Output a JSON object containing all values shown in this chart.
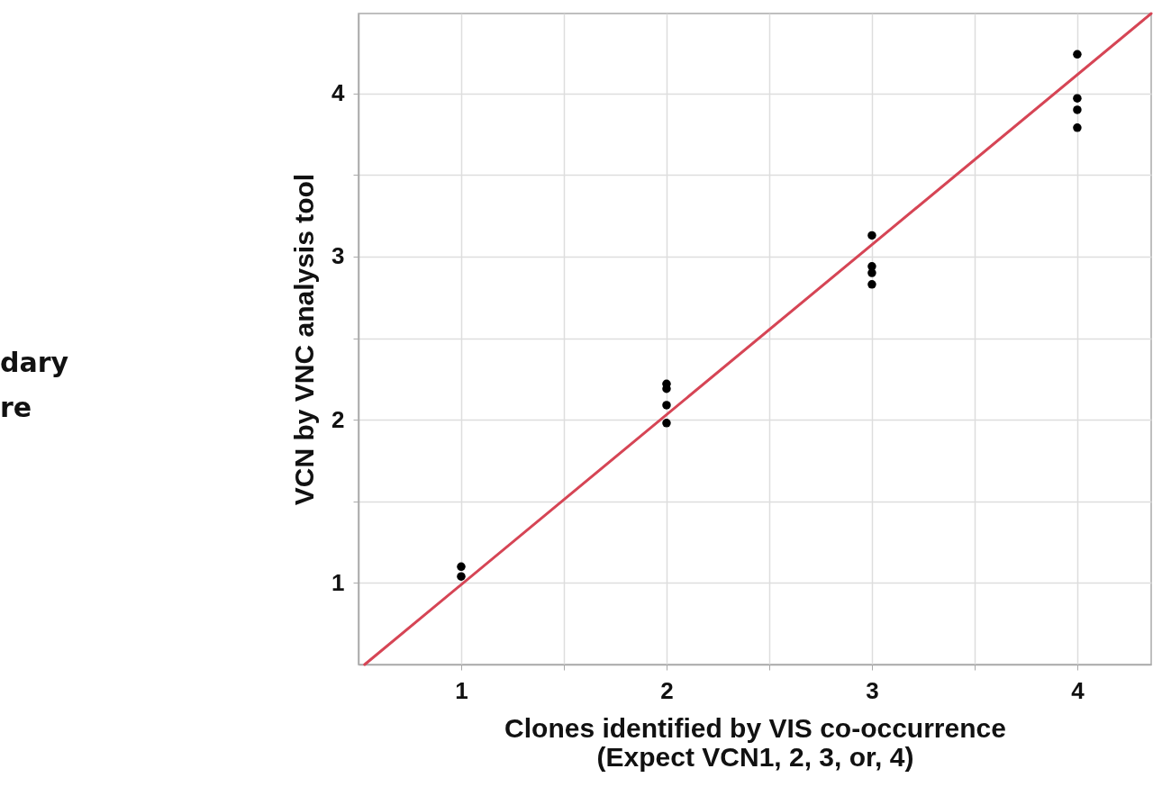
{
  "chart_data": {
    "type": "scatter",
    "xlabel": "Clones identified by VIS co-occurrence\n(Expect VCN1, 2, 3, or, 4)",
    "ylabel": "VCN by VNC analysis tool",
    "annotations": [
      "dary",
      "re"
    ],
    "xlim": [
      0.5,
      4.36
    ],
    "ylim": [
      0.5,
      4.49
    ],
    "xticks": [
      1,
      {
        "value": 1.5,
        "label": null
      },
      2,
      {
        "value": 2.5,
        "label": null
      },
      3,
      {
        "value": 3.5,
        "label": null
      },
      4
    ],
    "yticks": [
      1,
      {
        "value": 1.5,
        "label": null
      },
      2,
      {
        "value": 2.5,
        "label": null
      },
      3,
      {
        "value": 3.5,
        "label": null
      },
      4
    ],
    "grid": true,
    "series": [
      {
        "marker": "circle",
        "color": "#000000",
        "x": [
          1,
          1,
          2,
          2,
          2,
          2,
          3,
          3,
          3,
          3,
          4,
          4,
          4,
          4
        ],
        "values": [
          1.1,
          1.04,
          2.22,
          2.19,
          2.09,
          1.98,
          3.13,
          2.94,
          2.9,
          2.83,
          4.24,
          3.97,
          3.9,
          3.79
        ]
      },
      {
        "type": "line",
        "color": "#d64555",
        "x": [
          0.53,
          4.36
        ],
        "values": [
          0.5,
          4.49
        ]
      }
    ]
  }
}
